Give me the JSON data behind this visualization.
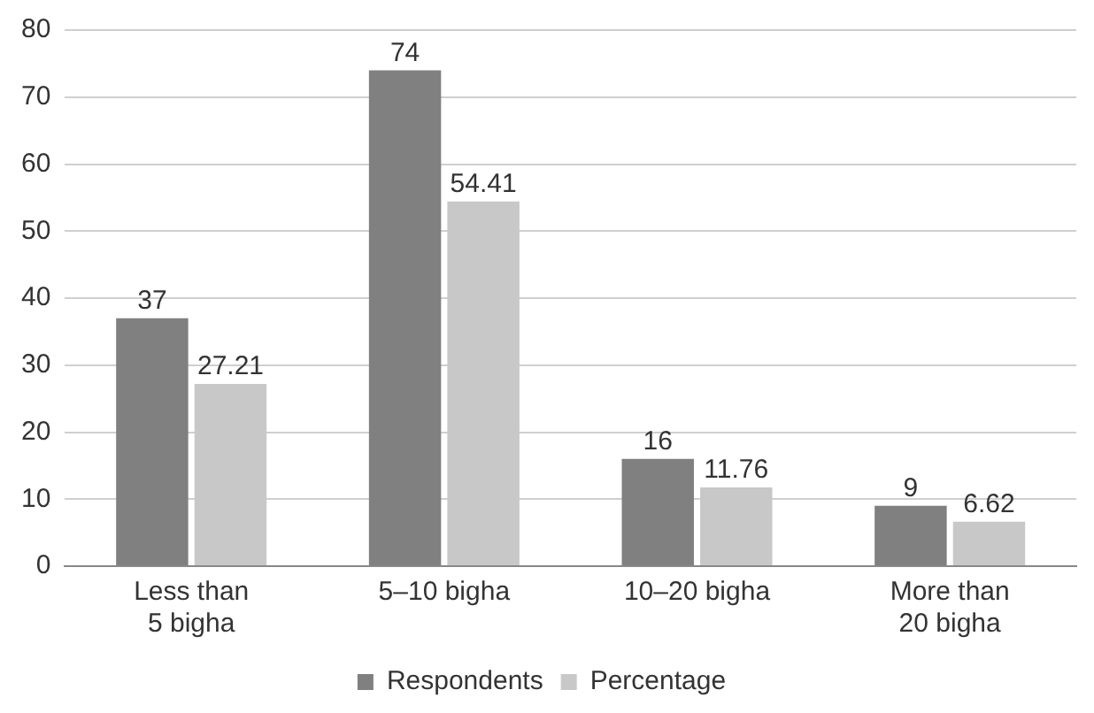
{
  "chart_data": {
    "type": "bar",
    "categories": [
      "Less than 5 bigha",
      "5–10 bigha",
      "10–20 bigha",
      "More than 20 bigha"
    ],
    "series": [
      {
        "name": "Respondents",
        "color": "#808080",
        "values": [
          37,
          74,
          16,
          9
        ]
      },
      {
        "name": "Percentage",
        "color": "#c8c8c8",
        "values": [
          27.21,
          54.41,
          11.76,
          6.62
        ]
      }
    ],
    "ylim": [
      0,
      80
    ],
    "yticks": [
      0,
      10,
      20,
      30,
      40,
      50,
      60,
      70,
      80
    ],
    "grid": "y",
    "legend": "bottom",
    "data_labels": true
  }
}
